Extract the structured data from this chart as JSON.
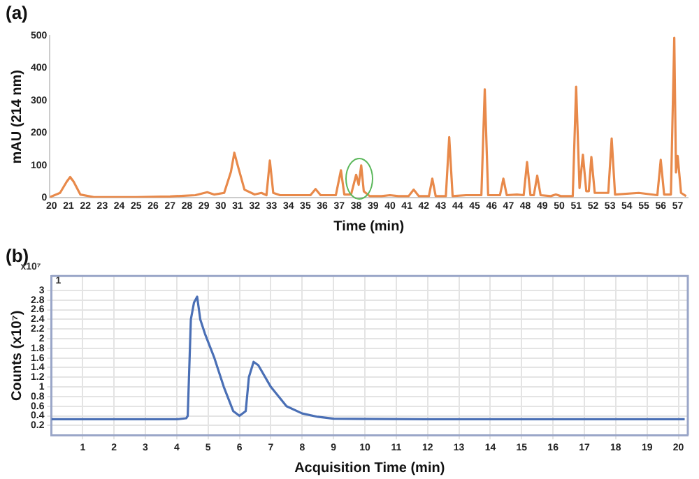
{
  "chart_data": [
    {
      "type": "line",
      "title": "(a)",
      "xlabel": "Time (min)",
      "ylabel": "mAU (214 nm)",
      "x": [
        19.9,
        20.5,
        20.9,
        21.1,
        21.3,
        21.7,
        22.5,
        25,
        27,
        28.5,
        29.2,
        29.6,
        30.2,
        30.6,
        30.8,
        31.0,
        31.4,
        32.0,
        32.4,
        32.7,
        32.9,
        33.1,
        33.5,
        34.5,
        35.3,
        35.6,
        35.9,
        36.8,
        37.1,
        37.3,
        37.7,
        38.0,
        38.15,
        38.3,
        38.45,
        38.8,
        39.5,
        40.0,
        40.5,
        41.1,
        41.4,
        41.7,
        42.3,
        42.5,
        42.7,
        43.3,
        43.5,
        43.7,
        44.5,
        45.4,
        45.6,
        45.8,
        46.5,
        46.7,
        46.9,
        47.5,
        47.9,
        48.1,
        48.3,
        48.5,
        48.7,
        48.9,
        49.5,
        49.8,
        50.1,
        50.8,
        51.0,
        51.2,
        51.4,
        51.6,
        51.75,
        51.9,
        52.1,
        52.9,
        53.1,
        53.3,
        54.7,
        55.8,
        56.0,
        56.2,
        56.6,
        56.8,
        56.9,
        57.0,
        57.2,
        57.5
      ],
      "series": [
        {
          "color": "#e8894a",
          "values": [
            2,
            15,
            50,
            64,
            50,
            10,
            2,
            2,
            4,
            8,
            17,
            10,
            15,
            80,
            139,
            100,
            25,
            10,
            15,
            8,
            115,
            15,
            8,
            8,
            8,
            27,
            8,
            8,
            85,
            10,
            10,
            71,
            40,
            100,
            20,
            5,
            5,
            8,
            5,
            5,
            25,
            5,
            5,
            59,
            5,
            5,
            187,
            5,
            8,
            8,
            335,
            8,
            8,
            59,
            8,
            10,
            8,
            110,
            8,
            8,
            68,
            8,
            5,
            10,
            5,
            5,
            343,
            30,
            133,
            20,
            20,
            126,
            15,
            15,
            183,
            10,
            15,
            8,
            117,
            10,
            10,
            494,
            78,
            129,
            15,
            5
          ]
        }
      ],
      "xlim": [
        19.9,
        57.6
      ],
      "ylim": [
        0,
        500
      ],
      "xticks": [
        20,
        21,
        22,
        23,
        24,
        25,
        26,
        27,
        28,
        29,
        30,
        31,
        32,
        33,
        34,
        35,
        36,
        37,
        38,
        39,
        40,
        41,
        42,
        43,
        44,
        45,
        46,
        47,
        48,
        49,
        50,
        51,
        52,
        53,
        54,
        55,
        56,
        57
      ],
      "yticks": [
        0,
        100,
        200,
        300,
        400,
        500
      ],
      "grid": false
    },
    {
      "type": "line",
      "title": "(b)",
      "xlabel": "Acquisition Time (min)",
      "ylabel": "Counts (x10⁷)",
      "annotations": [
        "x10⁷",
        "1"
      ],
      "x": [
        0,
        2,
        4,
        4.3,
        4.35,
        4.45,
        4.55,
        4.65,
        4.75,
        4.9,
        5.2,
        5.5,
        5.8,
        6.0,
        6.2,
        6.3,
        6.45,
        6.6,
        7.0,
        7.5,
        8.0,
        8.5,
        9.0,
        12,
        16,
        20.2
      ],
      "series": [
        {
          "color": "#4a6fb5",
          "values": [
            0.33,
            0.33,
            0.33,
            0.35,
            0.4,
            2.4,
            2.75,
            2.87,
            2.4,
            2.1,
            1.6,
            1.0,
            0.5,
            0.4,
            0.5,
            1.2,
            1.52,
            1.45,
            1.0,
            0.6,
            0.45,
            0.38,
            0.34,
            0.33,
            0.33,
            0.33
          ]
        }
      ],
      "xlim": [
        0,
        20.3
      ],
      "ylim": [
        0,
        3.3
      ],
      "xticks": [
        1,
        2,
        3,
        4,
        5,
        6,
        7,
        8,
        9,
        10,
        11,
        12,
        13,
        14,
        15,
        16,
        17,
        18,
        19,
        20
      ],
      "yticks": [
        0.2,
        0.4,
        0.6,
        0.8,
        1,
        1.2,
        1.4,
        1.6,
        1.8,
        2,
        2.2,
        2.4,
        2.6,
        2.8,
        3
      ],
      "grid": true
    }
  ]
}
